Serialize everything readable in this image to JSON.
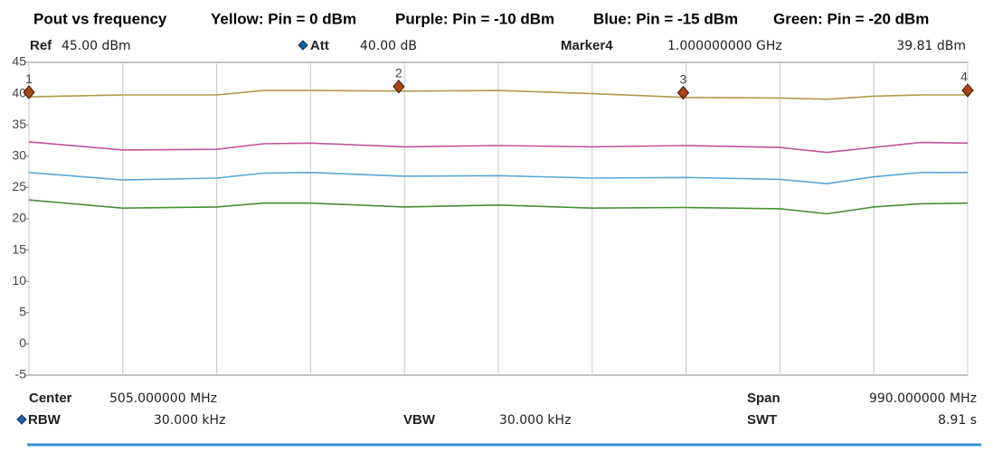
{
  "chart_data": {
    "type": "line",
    "title": "Pout vs frequency",
    "x": [
      10,
      109,
      208,
      257.5,
      307,
      406,
      505,
      604,
      703,
      802,
      851.5,
      901,
      950.5,
      1000
    ],
    "xlim": [
      10,
      1000
    ],
    "xticks": [
      10,
      109,
      208,
      307,
      406,
      505,
      604,
      703,
      802,
      901,
      1000
    ],
    "ylim": [
      -5,
      45
    ],
    "yticks": [
      45,
      40,
      35,
      30,
      25,
      20,
      15,
      10,
      5,
      0,
      -5
    ],
    "grid": true,
    "series": [
      {
        "name": "Yellow: Pin = 0 dBm",
        "color": "#b09a4a",
        "values": [
          39.5,
          39.8,
          39.8,
          40.5,
          40.5,
          40.4,
          40.5,
          40.0,
          39.4,
          39.3,
          39.1,
          39.6,
          39.8,
          39.8
        ]
      },
      {
        "name": "Purple: Pin = -10 dBm",
        "color": "#c0559a",
        "values": [
          32.3,
          31.0,
          31.1,
          32.0,
          32.1,
          31.5,
          31.7,
          31.5,
          31.7,
          31.4,
          30.6,
          31.4,
          32.2,
          32.1
        ]
      },
      {
        "name": "Blue: Pin = -15 dBm",
        "color": "#5aa6d8",
        "values": [
          27.4,
          26.2,
          26.5,
          27.3,
          27.4,
          26.8,
          26.9,
          26.5,
          26.6,
          26.3,
          25.6,
          26.7,
          27.4,
          27.4
        ]
      },
      {
        "name": "Green: Pin = -20 dBm",
        "color": "#4a8c3a",
        "values": [
          23.0,
          21.7,
          21.9,
          22.5,
          22.5,
          21.9,
          22.2,
          21.7,
          21.8,
          21.6,
          20.8,
          21.9,
          22.4,
          22.5
        ]
      }
    ],
    "markers": [
      {
        "label": "1",
        "x": 10
      },
      {
        "label": "2",
        "x": 400
      },
      {
        "label": "3",
        "x": 700
      },
      {
        "label": "4",
        "x": 1000
      }
    ],
    "info": {
      "ref_label": "Ref",
      "ref_value": "45.00 dBm",
      "att_label": "Att",
      "att_value": "40.00 dB",
      "marker_label": "Marker4",
      "marker_freq": "1.000000000 GHz",
      "marker_level": "39.81 dBm",
      "center_label": "Center",
      "center_value": "505.000000 MHz",
      "span_label": "Span",
      "span_value": "990.000000 MHz",
      "rbw_label": "RBW",
      "rbw_value": "30.000 kHz",
      "vbw_label": "VBW",
      "vbw_value": "30.000 kHz",
      "swt_label": "SWT",
      "swt_value": "8.91 s"
    }
  }
}
